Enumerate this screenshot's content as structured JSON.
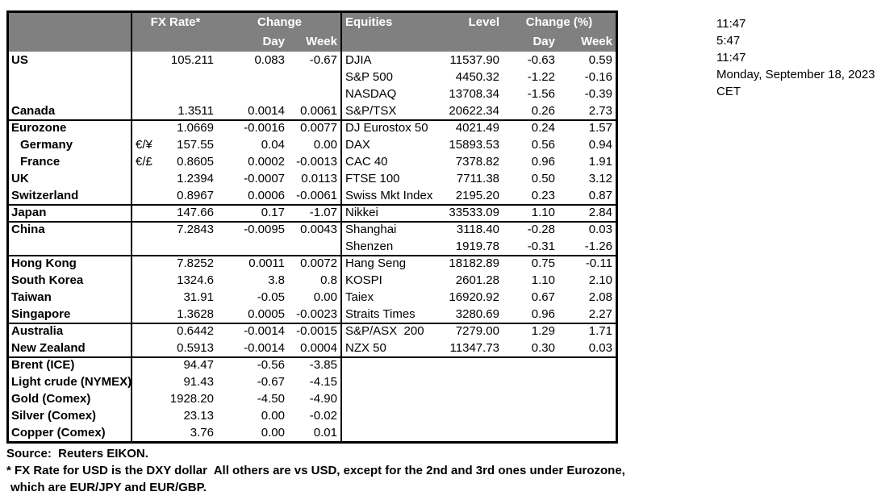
{
  "header": {
    "fx_rate": "FX Rate*",
    "fx_change": "Change",
    "fx_day": "Day",
    "fx_week": "Week",
    "equities": "Equities",
    "level": "Level",
    "eq_change": "Change (%)",
    "eq_day": "Day",
    "eq_week": "Week"
  },
  "rows": [
    {
      "label": "US",
      "pair": "",
      "rate": "105.211",
      "day": "0.083",
      "week": "-0.67",
      "eq": "DJIA",
      "level": "11537.90",
      "eqd": "-0.63",
      "eqw": "0.59"
    },
    {
      "label": "",
      "pair": "",
      "rate": "",
      "day": "",
      "week": "",
      "eq": "S&P 500",
      "level": "4450.32",
      "eqd": "-1.22",
      "eqw": "-0.16"
    },
    {
      "label": "",
      "pair": "",
      "rate": "",
      "day": "",
      "week": "",
      "eq": "NASDAQ",
      "level": "13708.34",
      "eqd": "-1.56",
      "eqw": "-0.39"
    },
    {
      "label": "Canada",
      "pair": "",
      "rate": "1.3511",
      "day": "0.0014",
      "week": "0.0061",
      "eq": "S&P/TSX",
      "level": "20622.34",
      "eqd": "0.26",
      "eqw": "2.73"
    },
    {
      "label": "Eurozone",
      "pair": "",
      "rate": "1.0669",
      "day": "-0.0016",
      "week": "0.0077",
      "eq": "DJ Eurostox 50",
      "level": "4021.49",
      "eqd": "0.24",
      "eqw": "1.57",
      "sep": true
    },
    {
      "label": "Germany",
      "pair": "€/¥",
      "rate": "157.55",
      "day": "0.04",
      "week": "0.00",
      "eq": "DAX",
      "level": "15893.53",
      "eqd": "0.56",
      "eqw": "0.94",
      "indent": true
    },
    {
      "label": "France",
      "pair": "€/£",
      "rate": "0.8605",
      "day": "0.0002",
      "week": "-0.0013",
      "eq": "CAC 40",
      "level": "7378.82",
      "eqd": "0.96",
      "eqw": "1.91",
      "indent": true
    },
    {
      "label": "UK",
      "pair": "",
      "rate": "1.2394",
      "day": "-0.0007",
      "week": "0.0113",
      "eq": "FTSE 100",
      "level": "7711.38",
      "eqd": "0.50",
      "eqw": "3.12"
    },
    {
      "label": "Switzerland",
      "pair": "",
      "rate": "0.8967",
      "day": "0.0006",
      "week": "-0.0061",
      "eq": "Swiss Mkt Index",
      "level": "2195.20",
      "eqd": "0.23",
      "eqw": "0.87"
    },
    {
      "label": "Japan",
      "pair": "",
      "rate": "147.66",
      "day": "0.17",
      "week": "-1.07",
      "eq": "Nikkei",
      "level": "33533.09",
      "eqd": "1.10",
      "eqw": "2.84",
      "sep": true
    },
    {
      "label": "China",
      "pair": "",
      "rate": "7.2843",
      "day": "-0.0095",
      "week": "0.0043",
      "eq": "Shanghai",
      "level": "3118.40",
      "eqd": "-0.28",
      "eqw": "0.03",
      "sep": true
    },
    {
      "label": "",
      "pair": "",
      "rate": "",
      "day": "",
      "week": "",
      "eq": "Shenzen",
      "level": "1919.78",
      "eqd": "-0.31",
      "eqw": "-1.26"
    },
    {
      "label": "Hong Kong",
      "pair": "",
      "rate": "7.8252",
      "day": "0.0011",
      "week": "0.0072",
      "eq": "Hang Seng",
      "level": "18182.89",
      "eqd": "0.75",
      "eqw": "-0.11",
      "sep": true
    },
    {
      "label": "South Korea",
      "pair": "",
      "rate": "1324.6",
      "day": "3.8",
      "week": "0.8",
      "eq": "KOSPI",
      "level": "2601.28",
      "eqd": "1.10",
      "eqw": "2.10"
    },
    {
      "label": "Taiwan",
      "pair": "",
      "rate": "31.91",
      "day": "-0.05",
      "week": "0.00",
      "eq": "Taiex",
      "level": "16920.92",
      "eqd": "0.67",
      "eqw": "2.08"
    },
    {
      "label": "Singapore",
      "pair": "",
      "rate": "1.3628",
      "day": "0.0005",
      "week": "-0.0023",
      "eq": "Straits Times",
      "level": "3280.69",
      "eqd": "0.96",
      "eqw": "2.27"
    },
    {
      "label": "Australia",
      "pair": "",
      "rate": "0.6442",
      "day": "-0.0014",
      "week": "-0.0015",
      "eq": "S&P/ASX  200",
      "level": "7279.00",
      "eqd": "1.29",
      "eqw": "1.71",
      "sep": true
    },
    {
      "label": "New Zealand",
      "pair": "",
      "rate": "0.5913",
      "day": "-0.0014",
      "week": "0.0004",
      "eq": "NZX 50",
      "level": "11347.73",
      "eqd": "0.30",
      "eqw": "0.03"
    },
    {
      "label": "Brent (ICE)",
      "pair": "",
      "rate": "94.47",
      "day": "-0.56",
      "week": "-3.85",
      "eq": "",
      "level": "",
      "eqd": "",
      "eqw": "",
      "sep": true
    },
    {
      "label": "Light crude (NYMEX)",
      "pair": "",
      "rate": "91.43",
      "day": "-0.67",
      "week": "-4.15",
      "eq": "",
      "level": "",
      "eqd": "",
      "eqw": ""
    },
    {
      "label": "Gold (Comex)",
      "pair": "",
      "rate": "1928.20",
      "day": "-4.50",
      "week": "-4.90",
      "eq": "",
      "level": "",
      "eqd": "",
      "eqw": ""
    },
    {
      "label": "Silver (Comex)",
      "pair": "",
      "rate": "23.13",
      "day": "0.00",
      "week": "-0.02",
      "eq": "",
      "level": "",
      "eqd": "",
      "eqw": ""
    },
    {
      "label": "Copper (Comex)",
      "pair": "",
      "rate": "3.76",
      "day": "0.00",
      "week": "0.01",
      "eq": "",
      "level": "",
      "eqd": "",
      "eqw": ""
    }
  ],
  "info": {
    "lines": [
      "11:47",
      "5:47",
      "11:47",
      "Monday, September 18, 2023",
      "CET"
    ]
  },
  "footer": {
    "source": "Source:  Reuters EIKON.",
    "note1": "* FX Rate for USD is the DXY dollar  All others are vs USD, except for the 2nd and 3rd ones under Eurozone,",
    "note2": "which are EUR/JPY and EUR/GBP."
  },
  "colors": {
    "header_bg": "#808080",
    "header_text": "#ffffff",
    "border": "#000000"
  }
}
